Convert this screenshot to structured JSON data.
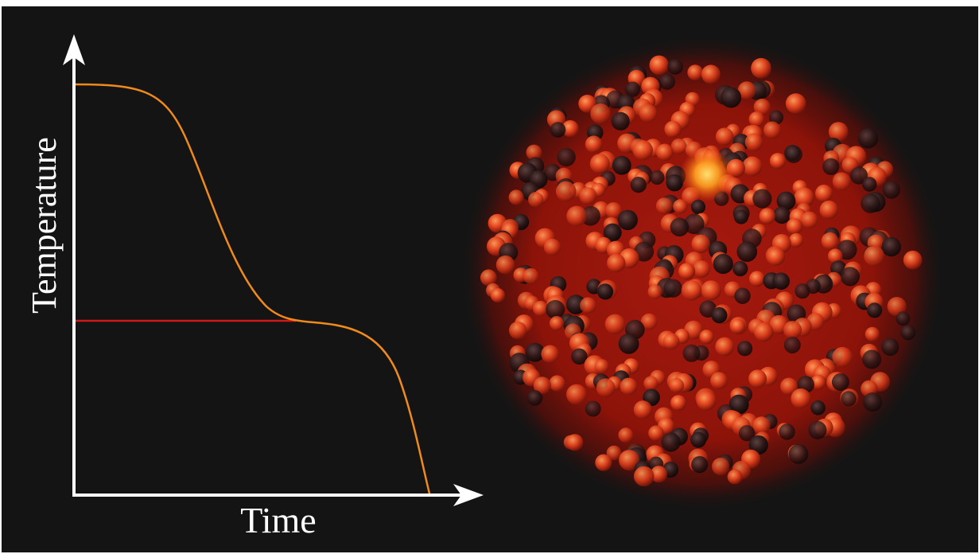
{
  "diagram": {
    "x_axis_label": "Time",
    "y_axis_label": "Temperature"
  },
  "colors": {
    "background": "#141414",
    "axis": "#ffffff",
    "cooling_curve": "#f08a1c",
    "plateau_line": "#d01818",
    "particle_glow": "#e02010",
    "hot_spot": "#ffb020"
  }
}
